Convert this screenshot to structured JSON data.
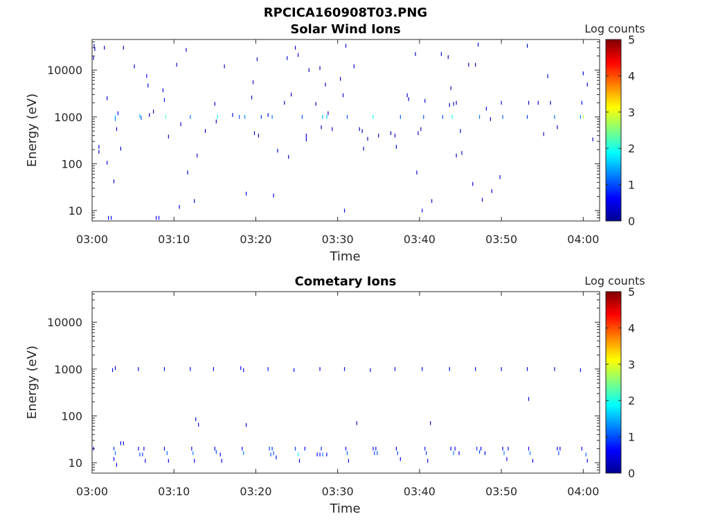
{
  "figure": {
    "title": "RPCICA160908T03.PNG"
  },
  "colorscale": [
    "#00008f",
    "#0000ff",
    "#0080ff",
    "#00ffff",
    "#80ff80",
    "#ffff00",
    "#ff8000",
    "#ff0000",
    "#800000"
  ],
  "chart_data": [
    {
      "type": "heatmap",
      "title": "Solar Wind Ions",
      "xlabel": "Time",
      "ylabel": "Energy (eV)",
      "x_scale": "time",
      "y_scale": "log",
      "xlim": [
        "03:00",
        "04:02"
      ],
      "ylim": [
        6,
        45000
      ],
      "xticks": [
        "03:00",
        "03:10",
        "03:20",
        "03:30",
        "03:40",
        "03:50",
        "04:00"
      ],
      "yticks": [
        10,
        100,
        1000,
        10000
      ],
      "ytick_labels": [
        "10",
        "100",
        "1000",
        "10000"
      ],
      "colorbar": {
        "label": "Log counts",
        "range": [
          0,
          5
        ],
        "ticks": [
          "0",
          "1",
          "2",
          "3",
          "4",
          "5"
        ]
      },
      "points": [
        [
          "03:00:15",
          33000,
          0.3
        ],
        [
          "03:00:20",
          28000,
          0.3
        ],
        [
          "03:00:10",
          18000,
          0.3
        ],
        [
          "03:00:50",
          230,
          0.4
        ],
        [
          "03:00:50",
          180,
          0.4
        ],
        [
          "03:01:30",
          30000,
          0.3
        ],
        [
          "03:01:50",
          2500,
          0.4
        ],
        [
          "03:01:50",
          105,
          0.5
        ],
        [
          "03:02:00",
          7,
          0.5
        ],
        [
          "03:02:20",
          7,
          0.5
        ],
        [
          "03:02:40",
          42,
          0.4
        ],
        [
          "03:02:50",
          1000,
          1.8
        ],
        [
          "03:02:50",
          900,
          1.2
        ],
        [
          "03:03:00",
          550,
          0.3
        ],
        [
          "03:03:10",
          1200,
          0.6
        ],
        [
          "03:03:30",
          210,
          0.4
        ],
        [
          "03:03:50",
          30000,
          0.3
        ],
        [
          "03:05:10",
          12000,
          0.3
        ],
        [
          "03:05:50",
          1050,
          1.5
        ],
        [
          "03:06:00",
          950,
          1.0
        ],
        [
          "03:06:40",
          7500,
          0.4
        ],
        [
          "03:06:50",
          4700,
          0.4
        ],
        [
          "03:07:00",
          1100,
          0.5
        ],
        [
          "03:07:30",
          1300,
          0.3
        ],
        [
          "03:07:50",
          7,
          0.6
        ],
        [
          "03:08:10",
          7,
          0.6
        ],
        [
          "03:08:40",
          3700,
          0.5
        ],
        [
          "03:08:50",
          2300,
          0.7
        ],
        [
          "03:09:00",
          1000,
          2.2
        ],
        [
          "03:09:20",
          380,
          0.3
        ],
        [
          "03:10:20",
          13000,
          0.3
        ],
        [
          "03:10:40",
          12,
          0.6
        ],
        [
          "03:10:50",
          700,
          0.3
        ],
        [
          "03:11:30",
          27000,
          0.3
        ],
        [
          "03:11:40",
          65,
          0.3
        ],
        [
          "03:12:00",
          1000,
          1.2
        ],
        [
          "03:12:30",
          16,
          0.5
        ],
        [
          "03:12:50",
          150,
          0.3
        ],
        [
          "03:13:50",
          500,
          0.4
        ],
        [
          "03:15:00",
          1900,
          0.4
        ],
        [
          "03:15:10",
          800,
          0.3
        ],
        [
          "03:15:20",
          1000,
          1.9
        ],
        [
          "03:16:10",
          12000,
          0.3
        ],
        [
          "03:17:10",
          1100,
          0.4
        ],
        [
          "03:18:00",
          1000,
          1.0
        ],
        [
          "03:18:40",
          1000,
          1.3
        ],
        [
          "03:18:50",
          23,
          0.5
        ],
        [
          "03:19:30",
          2600,
          0.4
        ],
        [
          "03:19:40",
          5500,
          0.3
        ],
        [
          "03:19:50",
          450,
          0.3
        ],
        [
          "03:20:10",
          17000,
          0.3
        ],
        [
          "03:20:20",
          400,
          0.3
        ],
        [
          "03:20:40",
          1000,
          0.9
        ],
        [
          "03:21:30",
          1100,
          0.4
        ],
        [
          "03:22:00",
          1000,
          1.2
        ],
        [
          "03:22:10",
          21,
          0.6
        ],
        [
          "03:22:40",
          190,
          0.3
        ],
        [
          "03:23:30",
          2000,
          0.4
        ],
        [
          "03:23:50",
          18000,
          0.3
        ],
        [
          "03:24:00",
          140,
          0.3
        ],
        [
          "03:24:20",
          3000,
          0.3
        ],
        [
          "03:24:50",
          30000,
          0.3
        ],
        [
          "03:25:10",
          21000,
          0.3
        ],
        [
          "03:25:40",
          1000,
          1.0
        ],
        [
          "03:26:10",
          400,
          0.4
        ],
        [
          "03:26:10",
          330,
          0.4
        ],
        [
          "03:26:30",
          10000,
          0.3
        ],
        [
          "03:27:20",
          1900,
          0.4
        ],
        [
          "03:27:50",
          11000,
          0.3
        ],
        [
          "03:28:00",
          600,
          0.3
        ],
        [
          "03:28:10",
          1000,
          1.5
        ],
        [
          "03:28:30",
          4900,
          0.3
        ],
        [
          "03:28:40",
          1000,
          1.6
        ],
        [
          "03:28:50",
          1200,
          0.3
        ],
        [
          "03:29:20",
          550,
          0.3
        ],
        [
          "03:30:20",
          6500,
          0.3
        ],
        [
          "03:30:40",
          2900,
          0.3
        ],
        [
          "03:30:50",
          10,
          0.5
        ],
        [
          "03:31:00",
          33000,
          0.3
        ],
        [
          "03:31:10",
          1000,
          1.0
        ],
        [
          "03:32:00",
          12000,
          0.3
        ],
        [
          "03:32:40",
          550,
          0.3
        ],
        [
          "03:33:00",
          500,
          0.3
        ],
        [
          "03:33:10",
          210,
          0.4
        ],
        [
          "03:33:40",
          340,
          0.3
        ],
        [
          "03:34:20",
          1000,
          1.9
        ],
        [
          "03:35:00",
          400,
          0.3
        ],
        [
          "03:36:30",
          450,
          0.3
        ],
        [
          "03:37:00",
          400,
          0.4
        ],
        [
          "03:37:10",
          230,
          0.3
        ],
        [
          "03:37:40",
          1000,
          1.0
        ],
        [
          "03:38:30",
          2900,
          0.3
        ],
        [
          "03:38:40",
          2400,
          0.4
        ],
        [
          "03:39:30",
          22000,
          0.3
        ],
        [
          "03:39:40",
          65,
          0.3
        ],
        [
          "03:39:50",
          450,
          0.3
        ],
        [
          "03:40:10",
          550,
          0.3
        ],
        [
          "03:40:20",
          10,
          0.5
        ],
        [
          "03:40:30",
          1000,
          1.0
        ],
        [
          "03:40:40",
          2200,
          0.3
        ],
        [
          "03:41:30",
          16,
          0.5
        ],
        [
          "03:42:40",
          22000,
          0.3
        ],
        [
          "03:42:50",
          1000,
          1.0
        ],
        [
          "03:43:30",
          19000,
          0.3
        ],
        [
          "03:43:40",
          1800,
          0.3
        ],
        [
          "03:43:50",
          4100,
          0.3
        ],
        [
          "03:44:10",
          1900,
          0.4
        ],
        [
          "03:44:30",
          2000,
          0.4
        ],
        [
          "03:44:00",
          1000,
          1.9
        ],
        [
          "03:44:30",
          150,
          0.3
        ],
        [
          "03:45:00",
          500,
          0.3
        ],
        [
          "03:45:10",
          170,
          0.3
        ],
        [
          "03:46:00",
          13000,
          0.3
        ],
        [
          "03:46:30",
          37,
          0.3
        ],
        [
          "03:46:50",
          13000,
          0.3
        ],
        [
          "03:47:10",
          35000,
          0.3
        ],
        [
          "03:47:20",
          1000,
          1.2
        ],
        [
          "03:47:40",
          17,
          0.5
        ],
        [
          "03:48:10",
          1500,
          0.3
        ],
        [
          "03:48:40",
          900,
          0.3
        ],
        [
          "03:48:50",
          26,
          0.4
        ],
        [
          "03:49:50",
          52,
          0.3
        ],
        [
          "03:50:00",
          2000,
          0.4
        ],
        [
          "03:50:10",
          1000,
          1.1
        ],
        [
          "03:53:10",
          33000,
          0.3
        ],
        [
          "03:53:10",
          1000,
          0.9
        ],
        [
          "03:53:20",
          2000,
          0.3
        ],
        [
          "03:54:30",
          2000,
          0.3
        ],
        [
          "03:55:10",
          430,
          0.3
        ],
        [
          "03:55:40",
          7400,
          0.3
        ],
        [
          "03:56:00",
          2000,
          0.3
        ],
        [
          "03:56:30",
          1000,
          1.2
        ],
        [
          "03:56:50",
          600,
          0.3
        ],
        [
          "03:59:40",
          1000,
          1.3
        ],
        [
          "03:59:50",
          2000,
          0.6
        ],
        [
          "04:00:00",
          8500,
          0.3
        ],
        [
          "04:00:00",
          1000,
          2.8
        ],
        [
          "04:00:30",
          4900,
          0.3
        ],
        [
          "04:01:10",
          330,
          0.3
        ]
      ]
    },
    {
      "type": "heatmap",
      "title": "Cometary Ions",
      "xlabel": "Time",
      "ylabel": "Energy (eV)",
      "x_scale": "time",
      "y_scale": "log",
      "xlim": [
        "03:00",
        "04:02"
      ],
      "ylim": [
        6,
        45000
      ],
      "xticks": [
        "03:00",
        "03:10",
        "03:20",
        "03:30",
        "03:40",
        "03:50",
        "04:00"
      ],
      "yticks": [
        10,
        100,
        1000,
        10000
      ],
      "ytick_labels": [
        "10",
        "100",
        "1000",
        "10000"
      ],
      "colorbar": {
        "label": "Log counts",
        "range": [
          0,
          5
        ],
        "ticks": [
          "0",
          "1",
          "2",
          "3",
          "4",
          "5"
        ]
      },
      "points": [
        [
          "03:00:10",
          20,
          0.6
        ],
        [
          "03:02:30",
          950,
          0.4
        ],
        [
          "03:02:50",
          1050,
          0.6
        ],
        [
          "03:02:40",
          20,
          0.9
        ],
        [
          "03:02:50",
          16,
          1.2
        ],
        [
          "03:02:40",
          12,
          0.6
        ],
        [
          "03:03:00",
          9,
          0.6
        ],
        [
          "03:03:30",
          26,
          0.5
        ],
        [
          "03:03:50",
          26,
          0.5
        ],
        [
          "03:05:40",
          1000,
          0.6
        ],
        [
          "03:05:40",
          20,
          0.6
        ],
        [
          "03:05:50",
          15,
          1.0
        ],
        [
          "03:06:10",
          15,
          0.9
        ],
        [
          "03:06:20",
          20,
          0.6
        ],
        [
          "03:06:30",
          11,
          0.6
        ],
        [
          "03:08:50",
          1000,
          0.6
        ],
        [
          "03:08:50",
          20,
          0.6
        ],
        [
          "03:09:10",
          16,
          1.1
        ],
        [
          "03:09:20",
          11,
          0.6
        ],
        [
          "03:12:00",
          1000,
          0.6
        ],
        [
          "03:12:10",
          20,
          0.6
        ],
        [
          "03:12:20",
          16,
          1.2
        ],
        [
          "03:12:30",
          11,
          0.6
        ],
        [
          "03:12:40",
          85,
          0.4
        ],
        [
          "03:13:00",
          65,
          0.4
        ],
        [
          "03:14:50",
          1000,
          0.6
        ],
        [
          "03:15:00",
          20,
          0.6
        ],
        [
          "03:15:10",
          17,
          1.0
        ],
        [
          "03:15:40",
          15,
          0.6
        ],
        [
          "03:15:50",
          11,
          0.6
        ],
        [
          "03:18:10",
          1050,
          0.6
        ],
        [
          "03:18:30",
          950,
          0.5
        ],
        [
          "03:18:20",
          20,
          0.6
        ],
        [
          "03:18:30",
          16,
          1.3
        ],
        [
          "03:18:50",
          64,
          0.4
        ],
        [
          "03:21:30",
          1000,
          0.6
        ],
        [
          "03:21:40",
          20,
          0.9
        ],
        [
          "03:21:50",
          15,
          1.1
        ],
        [
          "03:22:00",
          20,
          0.9
        ],
        [
          "03:22:10",
          16,
          1.0
        ],
        [
          "03:22:30",
          13,
          0.6
        ],
        [
          "03:24:40",
          950,
          0.5
        ],
        [
          "03:24:50",
          20,
          0.9
        ],
        [
          "03:25:10",
          15,
          1.8
        ],
        [
          "03:25:20",
          11,
          0.6
        ],
        [
          "03:26:00",
          20,
          0.6
        ],
        [
          "03:27:50",
          1000,
          0.5
        ],
        [
          "03:27:30",
          15,
          0.6
        ],
        [
          "03:27:50",
          15,
          0.6
        ],
        [
          "03:28:00",
          20,
          0.8
        ],
        [
          "03:28:10",
          15,
          1.2
        ],
        [
          "03:28:40",
          15,
          0.6
        ],
        [
          "03:30:50",
          1000,
          0.5
        ],
        [
          "03:31:00",
          20,
          0.6
        ],
        [
          "03:31:10",
          16,
          1.1
        ],
        [
          "03:31:20",
          11,
          0.6
        ],
        [
          "03:32:20",
          70,
          0.3
        ],
        [
          "03:34:00",
          950,
          0.5
        ],
        [
          "03:34:20",
          20,
          0.7
        ],
        [
          "03:34:30",
          16,
          0.9
        ],
        [
          "03:34:40",
          20,
          0.7
        ],
        [
          "03:34:50",
          16,
          1.0
        ],
        [
          "03:37:00",
          1000,
          0.6
        ],
        [
          "03:37:10",
          20,
          0.6
        ],
        [
          "03:37:20",
          16,
          1.0
        ],
        [
          "03:37:40",
          12,
          0.6
        ],
        [
          "03:40:20",
          1000,
          0.5
        ],
        [
          "03:40:40",
          20,
          0.7
        ],
        [
          "03:40:50",
          16,
          0.9
        ],
        [
          "03:41:00",
          11,
          0.6
        ],
        [
          "03:41:20",
          70,
          0.3
        ],
        [
          "03:43:40",
          1000,
          0.5
        ],
        [
          "03:43:50",
          20,
          0.6
        ],
        [
          "03:44:10",
          16,
          1.2
        ],
        [
          "03:44:20",
          20,
          0.6
        ],
        [
          "03:44:50",
          16,
          0.6
        ],
        [
          "03:46:50",
          1000,
          0.5
        ],
        [
          "03:47:00",
          20,
          0.9
        ],
        [
          "03:47:20",
          17,
          1.0
        ],
        [
          "03:47:30",
          20,
          0.6
        ],
        [
          "03:48:00",
          16,
          0.6
        ],
        [
          "03:50:00",
          1000,
          0.5
        ],
        [
          "03:50:10",
          20,
          0.6
        ],
        [
          "03:50:20",
          16,
          1.2
        ],
        [
          "03:50:40",
          12,
          0.6
        ],
        [
          "03:50:50",
          20,
          0.7
        ],
        [
          "03:53:10",
          1000,
          0.5
        ],
        [
          "03:53:20",
          20,
          0.6
        ],
        [
          "03:53:30",
          16,
          1.2
        ],
        [
          "03:53:50",
          11,
          0.6
        ],
        [
          "03:53:20",
          230,
          0.4
        ],
        [
          "03:56:30",
          1000,
          0.5
        ],
        [
          "03:56:50",
          20,
          0.7
        ],
        [
          "03:57:00",
          16,
          1.0
        ],
        [
          "03:57:10",
          20,
          0.6
        ],
        [
          "03:59:40",
          950,
          0.5
        ],
        [
          "03:59:50",
          20,
          0.6
        ],
        [
          "04:00:20",
          15,
          1.1
        ],
        [
          "04:00:30",
          11,
          0.6
        ]
      ]
    }
  ]
}
